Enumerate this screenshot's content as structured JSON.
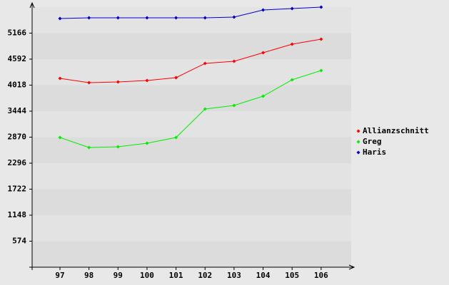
{
  "chart_data": {
    "type": "line",
    "categories": [
      "97",
      "98",
      "99",
      "100",
      "101",
      "102",
      "103",
      "104",
      "105",
      "106"
    ],
    "series": [
      {
        "name": "Allianzschnitt",
        "color": "#ff0000",
        "values": [
          4167,
          4073,
          4089,
          4120,
          4183,
          4498,
          4545,
          4734,
          4922,
          5032
        ]
      },
      {
        "name": "Greg",
        "color": "#00ee00",
        "values": [
          2862,
          2642,
          2658,
          2736,
          2862,
          3491,
          3570,
          3774,
          4136,
          4340
        ]
      },
      {
        "name": "Haris",
        "color": "#0000cc",
        "values": [
          5488,
          5504,
          5504,
          5504,
          5504,
          5504,
          5520,
          5677,
          5709,
          5740
        ]
      }
    ],
    "ylim": [
      0,
      5740
    ],
    "yticks": [
      574,
      1148,
      1722,
      2296,
      2870,
      3444,
      4018,
      4592,
      5166
    ],
    "grid": true
  }
}
